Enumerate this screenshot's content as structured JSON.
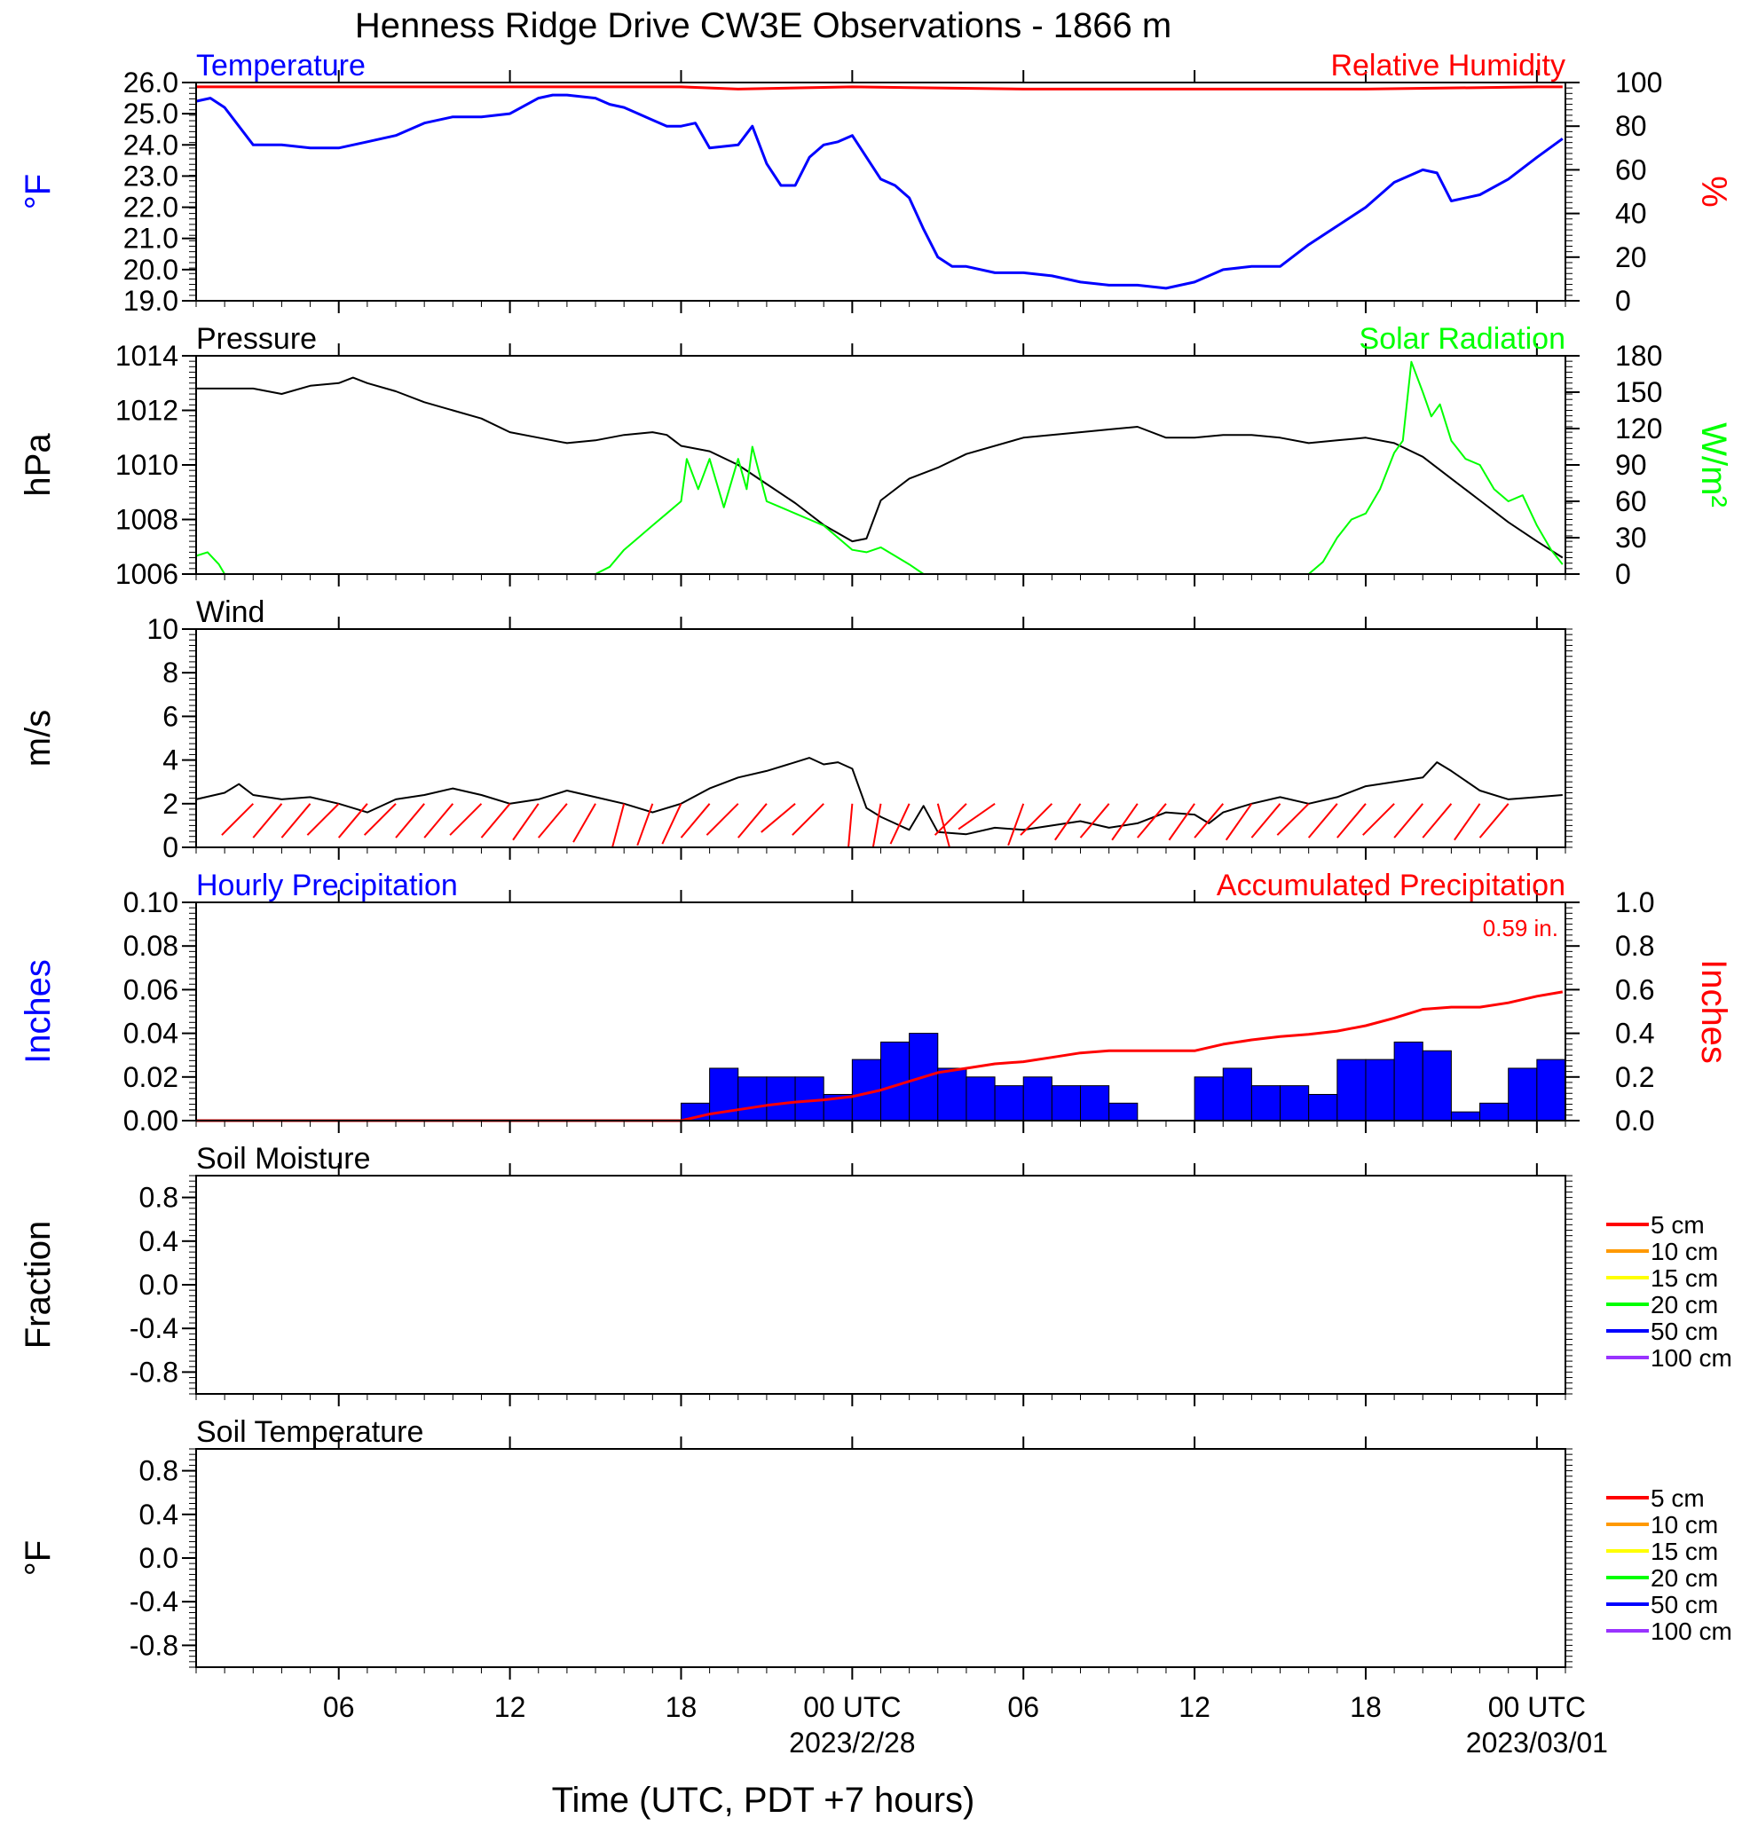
{
  "title": "Henness Ridge Drive CW3E Observations - 1866 m",
  "x_axis": {
    "label": "Time (UTC, PDT +7 hours)",
    "ticks": [
      {
        "hour": 6,
        "label": "06"
      },
      {
        "hour": 12,
        "label": "12"
      },
      {
        "hour": 18,
        "label": "18"
      },
      {
        "hour": 24,
        "label": "00 UTC",
        "sub": "2023/2/28"
      },
      {
        "hour": 30,
        "label": "06"
      },
      {
        "hour": 36,
        "label": "12"
      },
      {
        "hour": 42,
        "label": "18"
      },
      {
        "hour": 48,
        "label": "00 UTC",
        "sub": "2023/03/01"
      }
    ],
    "range_hours": [
      1,
      49
    ]
  },
  "colors": {
    "temperature": "#0000ff",
    "humidity": "#ff0000",
    "pressure": "#000000",
    "solar": "#00ff00",
    "wind_barb": "#ff0000",
    "hourly_precip": "#0000ff",
    "accum_precip": "#ff0000"
  },
  "chart_data": [
    {
      "id": "temp_rh",
      "type": "line",
      "left_title": "Temperature",
      "right_title": "Relative Humidity",
      "ylabel_left": "°F",
      "ylabel_right": "%",
      "ylim_left": [
        19.0,
        26.0
      ],
      "ylim_right": [
        0,
        100
      ],
      "yticks_left": [
        "19.0",
        "20.0",
        "21.0",
        "22.0",
        "23.0",
        "24.0",
        "25.0",
        "26.0"
      ],
      "yticks_right": [
        "0",
        "20",
        "40",
        "60",
        "80",
        "100"
      ],
      "series": [
        {
          "name": "Temperature",
          "axis": "left",
          "x": [
            1,
            1.5,
            2,
            3,
            4,
            5,
            6,
            7,
            8,
            9,
            10,
            11,
            12,
            13,
            13.5,
            14,
            15,
            15.5,
            16,
            17,
            17.5,
            18,
            18.5,
            19,
            20,
            20.5,
            21,
            21.5,
            22,
            22.5,
            23,
            23.5,
            24,
            25,
            25.5,
            26,
            26.5,
            27,
            27.5,
            28,
            29,
            30,
            31,
            32,
            33,
            34,
            35,
            36,
            37,
            38,
            39,
            40,
            41,
            42,
            43,
            44,
            44.5,
            45,
            46,
            47,
            48,
            48.9
          ],
          "values": [
            25.4,
            25.5,
            25.2,
            24.0,
            24.0,
            23.9,
            23.9,
            24.1,
            24.3,
            24.7,
            24.9,
            24.9,
            25.0,
            25.5,
            25.6,
            25.6,
            25.5,
            25.3,
            25.2,
            24.8,
            24.6,
            24.6,
            24.7,
            23.9,
            24.0,
            24.6,
            23.4,
            22.7,
            22.7,
            23.6,
            24.0,
            24.1,
            24.3,
            22.9,
            22.7,
            22.3,
            21.3,
            20.4,
            20.1,
            20.1,
            19.9,
            19.9,
            19.8,
            19.6,
            19.5,
            19.5,
            19.4,
            19.6,
            20.0,
            20.1,
            20.1,
            20.8,
            21.4,
            22.0,
            22.8,
            23.2,
            23.1,
            22.2,
            22.4,
            22.9,
            23.6,
            24.2
          ]
        },
        {
          "name": "Relative Humidity",
          "axis": "right",
          "x": [
            1,
            10,
            18,
            20,
            24,
            30,
            36,
            42,
            48,
            48.9
          ],
          "values": [
            98,
            98,
            98,
            97,
            98,
            97,
            97,
            97,
            98,
            98
          ]
        }
      ]
    },
    {
      "id": "pressure_solar",
      "type": "line",
      "left_title": "Pressure",
      "right_title": "Solar Radiation",
      "ylabel_left": "hPa",
      "ylabel_right": "W/m²",
      "ylim_left": [
        1006,
        1014
      ],
      "ylim_right": [
        0,
        180
      ],
      "yticks_left": [
        "1006",
        "1008",
        "1010",
        "1012",
        "1014"
      ],
      "yticks_right": [
        "0",
        "30",
        "60",
        "90",
        "120",
        "150",
        "180"
      ],
      "series": [
        {
          "name": "Pressure",
          "axis": "left",
          "x": [
            1,
            3,
            4,
            5,
            6,
            6.5,
            7,
            8,
            9,
            10,
            11,
            12,
            13,
            14,
            15,
            16,
            17,
            17.5,
            18,
            19,
            20,
            21,
            22,
            23,
            24,
            24.5,
            25,
            26,
            27,
            28,
            30,
            32,
            33,
            34,
            35,
            36,
            37,
            38,
            39,
            40,
            41,
            42,
            43,
            44,
            45,
            46,
            47,
            48,
            48.9
          ],
          "values": [
            1012.8,
            1012.8,
            1012.6,
            1012.9,
            1013.0,
            1013.2,
            1013.0,
            1012.7,
            1012.3,
            1012.0,
            1011.7,
            1011.2,
            1011.0,
            1010.8,
            1010.9,
            1011.1,
            1011.2,
            1011.1,
            1010.7,
            1010.5,
            1010.0,
            1009.3,
            1008.6,
            1007.8,
            1007.2,
            1007.3,
            1008.7,
            1009.5,
            1009.9,
            1010.4,
            1011.0,
            1011.2,
            1011.3,
            1011.4,
            1011.0,
            1011.0,
            1011.1,
            1011.1,
            1011.0,
            1010.8,
            1010.9,
            1011.0,
            1010.8,
            1010.3,
            1009.5,
            1008.7,
            1007.9,
            1007.2,
            1006.6
          ]
        },
        {
          "name": "Solar Radiation",
          "axis": "right",
          "x": [
            1,
            1.4,
            1.8,
            2,
            15,
            15.5,
            16,
            16.5,
            17,
            17.5,
            18,
            18.2,
            18.6,
            19,
            19.5,
            20,
            20.3,
            20.5,
            21,
            21.5,
            22,
            22.5,
            23,
            23.5,
            24,
            24.5,
            25,
            25.5,
            26,
            26.5,
            27,
            40,
            40.5,
            41,
            41.5,
            42,
            42.5,
            43,
            43.3,
            43.6,
            44,
            44.3,
            44.6,
            45,
            45.5,
            46,
            46.5,
            47,
            47.5,
            48,
            48.5,
            48.9
          ],
          "values": [
            15,
            18,
            8,
            0,
            0,
            6,
            20,
            30,
            40,
            50,
            60,
            95,
            70,
            95,
            55,
            95,
            70,
            105,
            60,
            55,
            50,
            45,
            40,
            30,
            20,
            18,
            22,
            15,
            8,
            0,
            0,
            0,
            10,
            30,
            45,
            50,
            70,
            100,
            110,
            175,
            150,
            130,
            140,
            110,
            95,
            90,
            70,
            60,
            65,
            40,
            20,
            8
          ]
        }
      ]
    },
    {
      "id": "wind",
      "type": "line",
      "left_title": "Wind",
      "ylabel_left": "m/s",
      "ylim_left": [
        0,
        10
      ],
      "yticks_left": [
        "0",
        "2",
        "4",
        "6",
        "8",
        "10"
      ],
      "series": [
        {
          "name": "Wind Speed",
          "axis": "left",
          "x": [
            1,
            2,
            2.5,
            3,
            4,
            5,
            6,
            7,
            8,
            9,
            10,
            11,
            12,
            13,
            14,
            15,
            16,
            17,
            18,
            19,
            20,
            21,
            22,
            22.5,
            23,
            23.5,
            24,
            24.5,
            25,
            26,
            26.5,
            27,
            28,
            29,
            30,
            31,
            32,
            33,
            34,
            35,
            36,
            36.5,
            37,
            38,
            39,
            40,
            41,
            42,
            43,
            44,
            44.5,
            45,
            46,
            47,
            48,
            48.9
          ],
          "values": [
            2.2,
            2.5,
            2.9,
            2.4,
            2.2,
            2.3,
            2.0,
            1.6,
            2.2,
            2.4,
            2.7,
            2.4,
            2.0,
            2.2,
            2.6,
            2.3,
            2.0,
            1.6,
            2.0,
            2.7,
            3.2,
            3.5,
            3.9,
            4.1,
            3.8,
            3.9,
            3.6,
            1.8,
            1.4,
            0.8,
            1.9,
            0.7,
            0.6,
            0.9,
            0.8,
            1.0,
            1.2,
            0.9,
            1.1,
            1.6,
            1.5,
            1.1,
            1.6,
            2.0,
            2.3,
            2.0,
            2.3,
            2.8,
            3.0,
            3.2,
            3.9,
            3.5,
            2.6,
            2.2,
            2.3,
            2.4
          ]
        }
      ],
      "barbs": {
        "hours": [
          3,
          4,
          5,
          6,
          7,
          8,
          9,
          10,
          11,
          12,
          13,
          14,
          15,
          16,
          17,
          18,
          19,
          20,
          21,
          22,
          23,
          24,
          25,
          26,
          27,
          28,
          29,
          30,
          31,
          32,
          33,
          34,
          35,
          36,
          37,
          38,
          39,
          40,
          41,
          42,
          43,
          44,
          45,
          46,
          47
        ],
        "directions": [
          315,
          320,
          320,
          315,
          320,
          315,
          320,
          320,
          315,
          320,
          325,
          320,
          330,
          345,
          340,
          335,
          320,
          315,
          320,
          310,
          315,
          355,
          350,
          335,
          15,
          315,
          305,
          340,
          315,
          325,
          320,
          325,
          320,
          325,
          320,
          325,
          320,
          315,
          320,
          320,
          315,
          320,
          320,
          325,
          320
        ]
      }
    },
    {
      "id": "precip",
      "type": "bar",
      "left_title": "Hourly Precipitation",
      "right_title": "Accumulated Precipitation",
      "annotation": "0.59 in.",
      "ylabel_left": "Inches",
      "ylabel_right": "Inches",
      "ylim_left": [
        0,
        0.1
      ],
      "ylim_right": [
        0,
        1.0
      ],
      "yticks_left": [
        "0.00",
        "0.02",
        "0.04",
        "0.06",
        "0.08",
        "0.10"
      ],
      "yticks_right": [
        "0.0",
        "0.2",
        "0.4",
        "0.6",
        "0.8",
        "1.0"
      ],
      "series": [
        {
          "name": "Hourly Precipitation",
          "axis": "left",
          "x": [
            18,
            19,
            20,
            21,
            22,
            23,
            24,
            25,
            26,
            27,
            28,
            29,
            30,
            31,
            32,
            33,
            34,
            35,
            36,
            37,
            38,
            39,
            40,
            41,
            42,
            43,
            44,
            45,
            46,
            47,
            48
          ],
          "values": [
            0.008,
            0.024,
            0.02,
            0.02,
            0.02,
            0.012,
            0.028,
            0.036,
            0.04,
            0.024,
            0.02,
            0.016,
            0.02,
            0.016,
            0.016,
            0.008,
            0,
            0,
            0.02,
            0.024,
            0.016,
            0.016,
            0.012,
            0.028,
            0.028,
            0.036,
            0.032,
            0.004,
            0.008,
            0.024,
            0.028
          ]
        },
        {
          "name": "Accumulated Precipitation",
          "axis": "right",
          "x": [
            1,
            18,
            19,
            20,
            21,
            22,
            23,
            24,
            25,
            26,
            27,
            28,
            29,
            30,
            31,
            32,
            33,
            34,
            35,
            36,
            37,
            38,
            39,
            40,
            41,
            42,
            43,
            44,
            45,
            46,
            47,
            48,
            48.9
          ],
          "values": [
            0,
            0,
            0.03,
            0.05,
            0.07,
            0.085,
            0.095,
            0.11,
            0.14,
            0.18,
            0.22,
            0.24,
            0.26,
            0.27,
            0.29,
            0.31,
            0.32,
            0.32,
            0.32,
            0.32,
            0.35,
            0.37,
            0.385,
            0.395,
            0.41,
            0.435,
            0.47,
            0.51,
            0.52,
            0.52,
            0.54,
            0.57,
            0.59
          ]
        }
      ]
    },
    {
      "id": "soil_moisture",
      "type": "line",
      "left_title": "Soil Moisture",
      "ylabel_left": "Fraction",
      "ylim_left": [
        -1,
        1
      ],
      "yticks_left": [
        "-0.8",
        "-0.4",
        "0.0",
        "0.4",
        "0.8"
      ],
      "legend": [
        {
          "label": "5 cm",
          "color": "#ff0000"
        },
        {
          "label": "10 cm",
          "color": "#ff9900"
        },
        {
          "label": "15 cm",
          "color": "#ffff00"
        },
        {
          "label": "20 cm",
          "color": "#00ff00"
        },
        {
          "label": "50 cm",
          "color": "#0000ff"
        },
        {
          "label": "100 cm",
          "color": "#9933ff"
        }
      ],
      "series": []
    },
    {
      "id": "soil_temp",
      "type": "line",
      "left_title": "Soil Temperature",
      "ylabel_left": "°F",
      "ylim_left": [
        -1,
        1
      ],
      "yticks_left": [
        "-0.8",
        "-0.4",
        "0.0",
        "0.4",
        "0.8"
      ],
      "legend": [
        {
          "label": "5 cm",
          "color": "#ff0000"
        },
        {
          "label": "10 cm",
          "color": "#ff9900"
        },
        {
          "label": "15 cm",
          "color": "#ffff00"
        },
        {
          "label": "20 cm",
          "color": "#00ff00"
        },
        {
          "label": "50 cm",
          "color": "#0000ff"
        },
        {
          "label": "100 cm",
          "color": "#9933ff"
        }
      ],
      "series": []
    }
  ]
}
